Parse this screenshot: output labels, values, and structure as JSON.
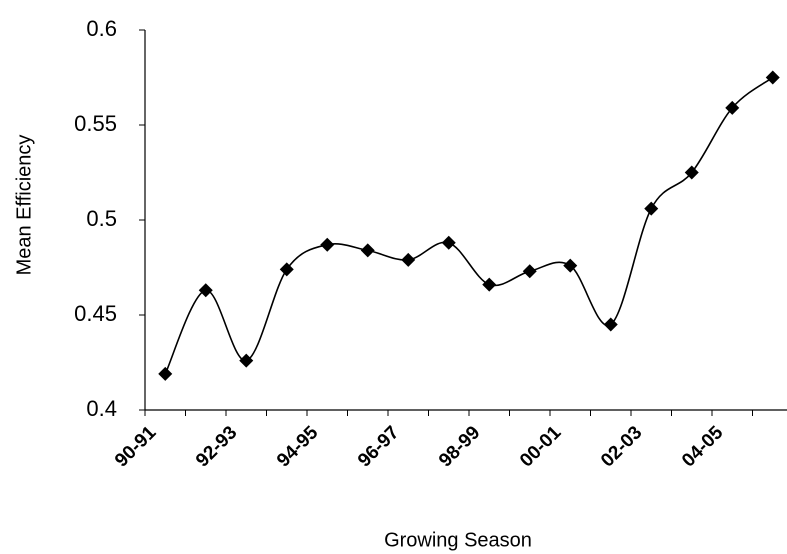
{
  "chart_data": {
    "type": "line",
    "y_label": "Mean Efficiency",
    "x_label": "Growing Season",
    "categories": [
      "90-91",
      null,
      "92-93",
      null,
      "94-95",
      null,
      "96-97",
      null,
      "98-99",
      null,
      "00-01",
      null,
      "02-03",
      null,
      "04-05",
      null
    ],
    "values": [
      0.419,
      0.463,
      0.426,
      0.474,
      0.487,
      0.484,
      0.479,
      0.488,
      0.466,
      0.473,
      0.476,
      0.445,
      0.506,
      0.525,
      0.559,
      0.575
    ],
    "color": "#000000",
    "ylim": [
      0.4,
      0.6
    ],
    "yticks": [
      0.4,
      0.45,
      0.5,
      0.55,
      0.6
    ],
    "grid": false
  }
}
